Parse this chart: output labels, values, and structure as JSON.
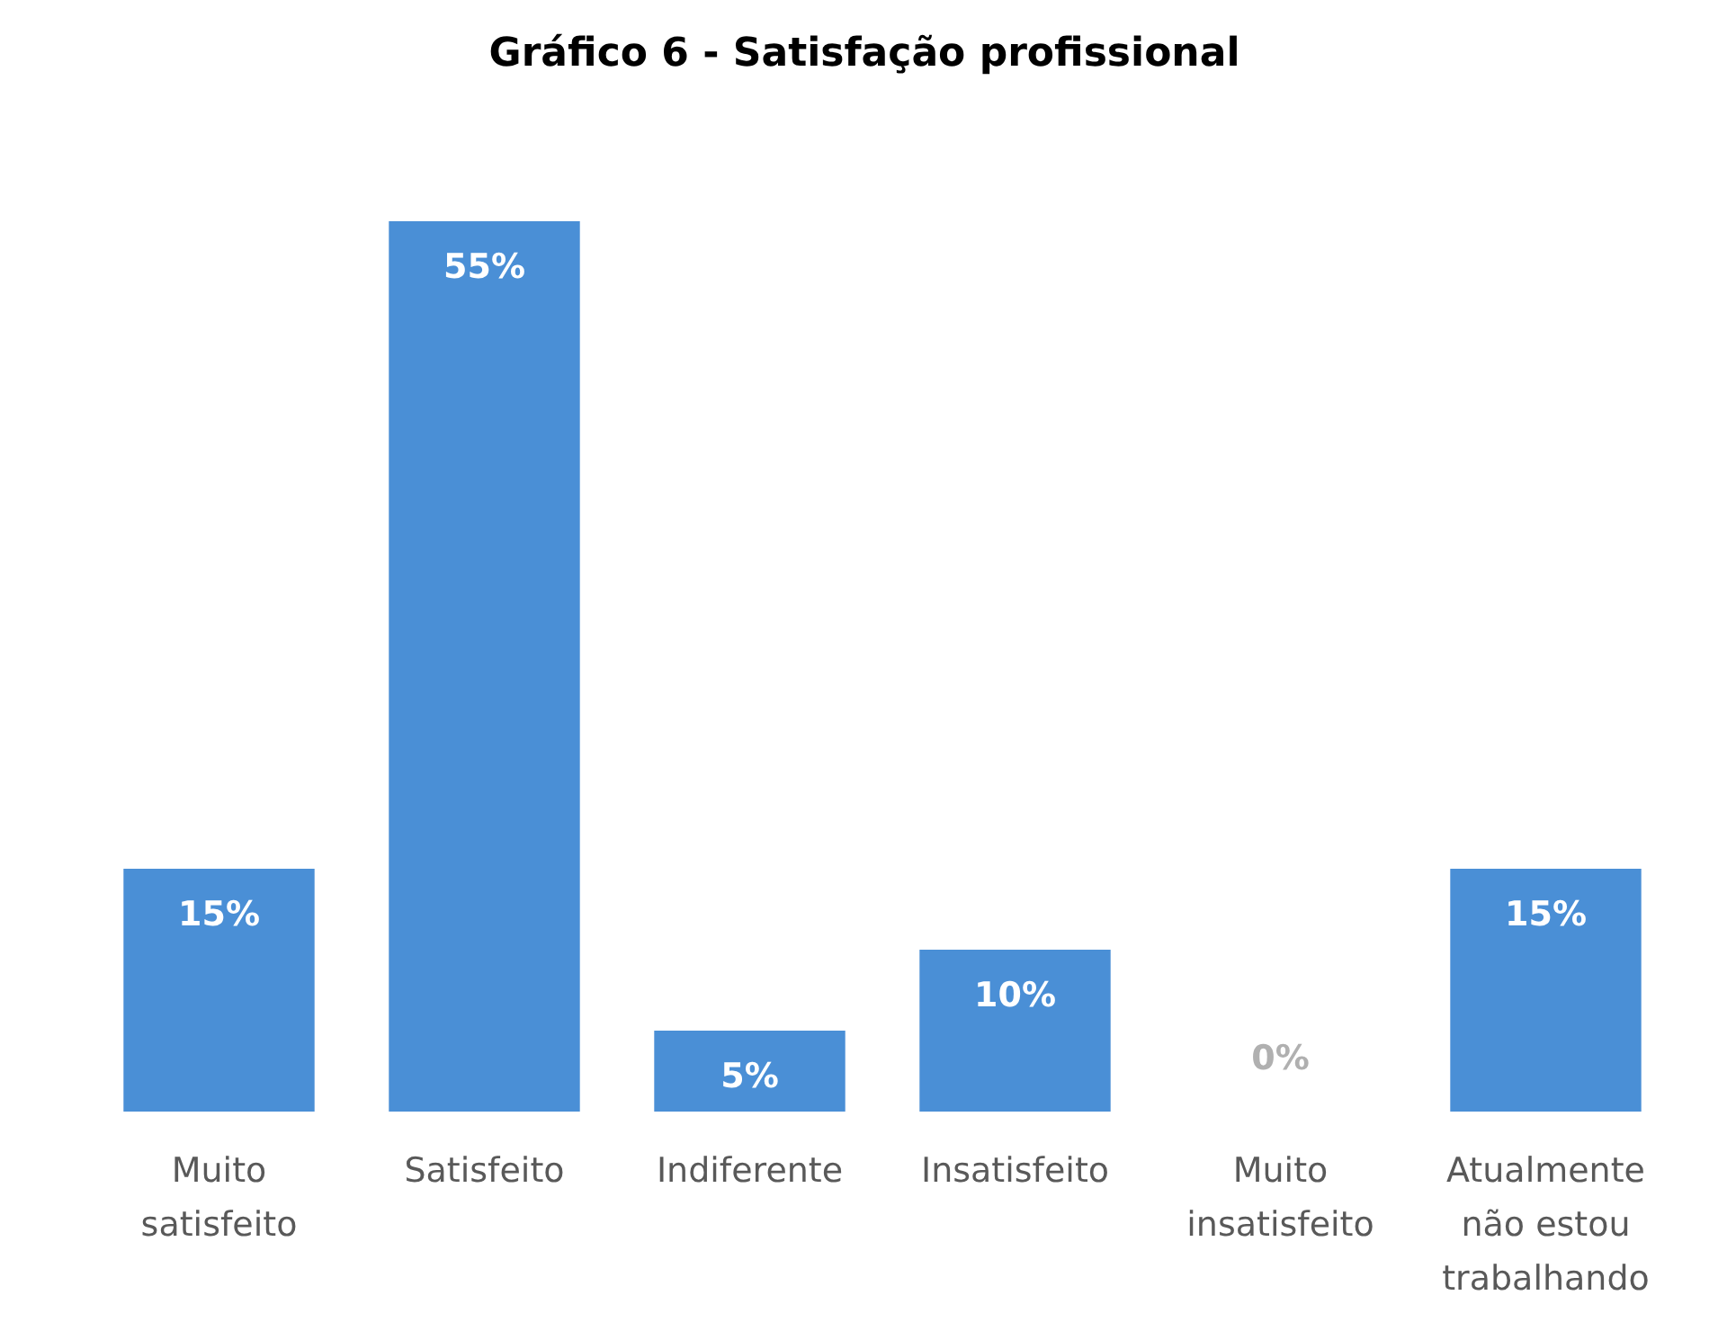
{
  "chart_data": {
    "type": "bar",
    "title": "Gráfico 6 - Satisfação profissional",
    "categories": [
      "Muito satisfeito",
      "Satisfeito",
      "Indiferente",
      "Insatisfeito",
      "Muito insatisfeito",
      "Atualmente não estou trabalhando"
    ],
    "values": [
      15,
      55,
      5,
      10,
      0,
      15
    ],
    "value_labels": [
      "15%",
      "55%",
      "5%",
      "10%",
      "0%",
      "15%"
    ],
    "color": "#4a8fd6"
  }
}
